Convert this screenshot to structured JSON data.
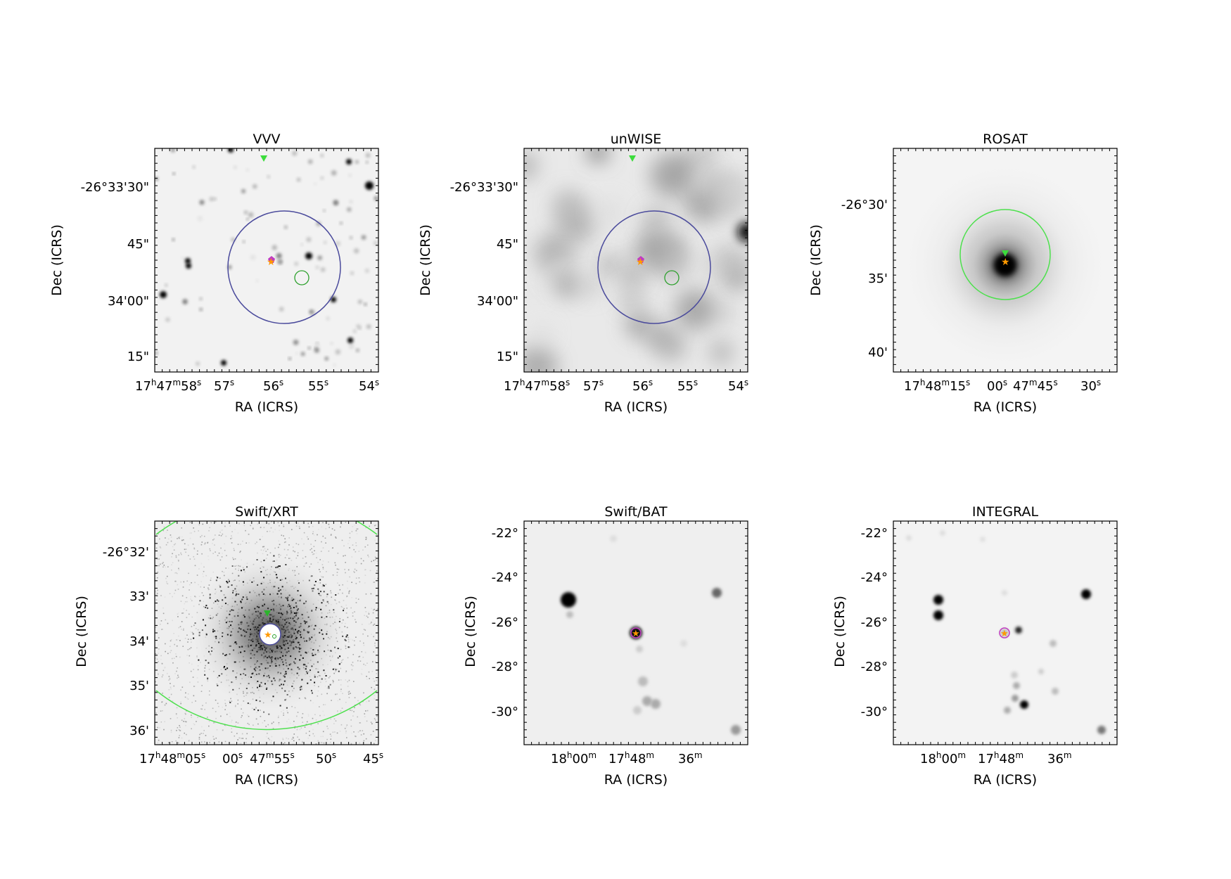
{
  "figure": {
    "x_axis_label": "RA (ICRS)",
    "y_axis_label": "Dec (ICRS)"
  },
  "chart_data": [
    {
      "type": "image",
      "title": "VVV",
      "xlabel": "RA (ICRS)",
      "ylabel": "Dec (ICRS)",
      "x_tick_labels": [
        "17h47m58s",
        "57s",
        "56s",
        "55s",
        "54s"
      ],
      "y_tick_labels": [
        "-26°33'30\"",
        "45\"",
        "34'00\"",
        "15\""
      ],
      "colormap": "gray_r",
      "grid": false,
      "markers": [
        "green-triangle-position",
        "orange-star-position",
        "magenta-pentagon-position"
      ],
      "regions": [
        "large-blue-error-circle",
        "small-green-circle"
      ]
    },
    {
      "type": "image",
      "title": "unWISE",
      "xlabel": "RA (ICRS)",
      "ylabel": "Dec (ICRS)",
      "x_tick_labels": [
        "17h47m58s",
        "57s",
        "56s",
        "55s",
        "54s"
      ],
      "y_tick_labels": [
        "-26°33'30\"",
        "45\"",
        "34'00\"",
        "15\""
      ],
      "colormap": "gray_r",
      "grid": false,
      "markers": [
        "green-triangle-position",
        "orange-star-position",
        "magenta-pentagon-position"
      ],
      "regions": [
        "large-blue-error-circle",
        "small-green-circle"
      ]
    },
    {
      "type": "image",
      "title": "ROSAT",
      "xlabel": "RA (ICRS)",
      "ylabel": "Dec (ICRS)",
      "x_tick_labels": [
        "17h48m15s",
        "00s",
        "47m45s",
        "30s"
      ],
      "y_tick_labels": [
        "-26°30'",
        "35'",
        "40'"
      ],
      "colormap": "gray_r",
      "grid": false,
      "markers": [
        "green-triangle-position",
        "orange-star-position"
      ],
      "regions": [
        "green-error-circle"
      ]
    },
    {
      "type": "image",
      "title": "Swift/XRT",
      "xlabel": "RA (ICRS)",
      "ylabel": "Dec (ICRS)",
      "x_tick_labels": [
        "17h48m05s",
        "00s",
        "47m55s",
        "50s",
        "45s"
      ],
      "y_tick_labels": [
        "-26°32'",
        "33'",
        "34'",
        "35'",
        "36'"
      ],
      "colormap": "gray_r",
      "grid": false,
      "markers": [
        "green-triangle-position",
        "orange-star-position"
      ],
      "regions": [
        "blue-error-circle",
        "large-green-arc"
      ]
    },
    {
      "type": "image",
      "title": "Swift/BAT",
      "xlabel": "RA (ICRS)",
      "ylabel": "Dec (ICRS)",
      "x_tick_labels": [
        "18h00m",
        "17h48m",
        "36m"
      ],
      "y_tick_labels": [
        "-22°",
        "-24°",
        "-26°",
        "-28°",
        "-30°"
      ],
      "colormap": "gray_r",
      "grid": false,
      "markers": [
        "orange-star-position"
      ],
      "regions": [
        "magenta-circle"
      ]
    },
    {
      "type": "image",
      "title": "INTEGRAL",
      "xlabel": "RA (ICRS)",
      "ylabel": "Dec (ICRS)",
      "x_tick_labels": [
        "18h00m",
        "17h48m",
        "36m"
      ],
      "y_tick_labels": [
        "-22°",
        "-24°",
        "-26°",
        "-28°",
        "-30°"
      ],
      "colormap": "gray_r",
      "grid": false,
      "markers": [
        "orange-star-position"
      ],
      "regions": [
        "magenta-circle"
      ]
    }
  ]
}
